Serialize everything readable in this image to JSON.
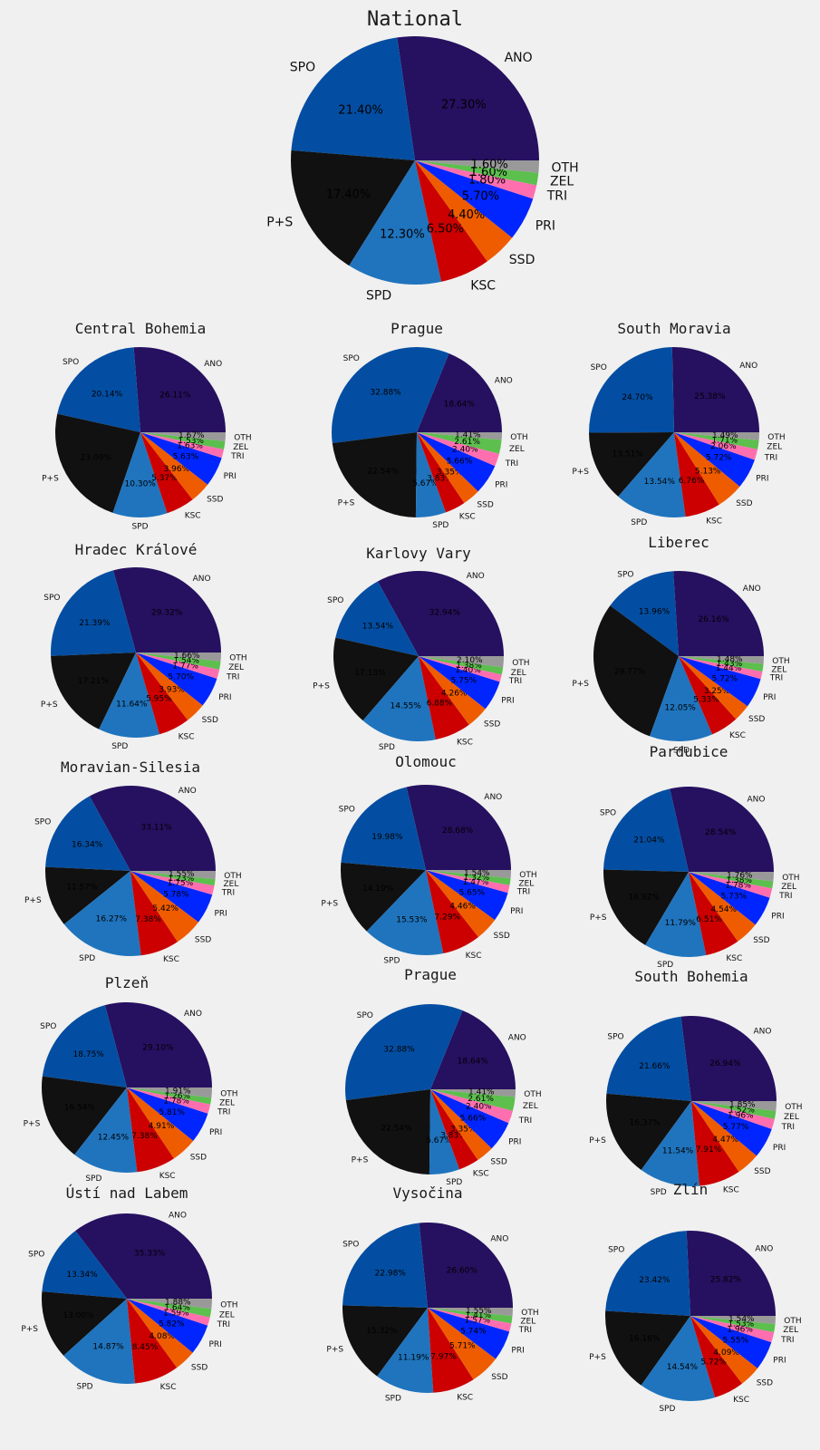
{
  "colors": {
    "ANO": "#261060",
    "SPO": "#034ea2",
    "P+S": "#111111",
    "SPD": "#1f74bd",
    "KSC": "#cc0000",
    "SSD": "#ef5c00",
    "PRI": "#0025ff",
    "TRI": "#ff6fb0",
    "ZEL": "#5cbf4e",
    "OTH": "#999999"
  },
  "chart_data": [
    {
      "type": "pie",
      "title": "National",
      "labels": [
        "ANO",
        "SPO",
        "P+S",
        "SPD",
        "KSC",
        "SSD",
        "PRI",
        "TRI",
        "ZEL",
        "OTH"
      ],
      "values": [
        27.3,
        21.4,
        17.4,
        12.3,
        6.5,
        4.4,
        5.7,
        1.8,
        1.6,
        1.6
      ],
      "pct_labels": [
        "27.30%",
        "21.40%",
        "17.40%",
        "12.30%",
        "6.50%",
        "4.40%",
        "5.70%",
        "1.80%",
        "1.60%",
        "1.60%"
      ]
    },
    {
      "type": "pie",
      "title": "Central Bohemia",
      "labels": [
        "ANO",
        "SPO",
        "P+S",
        "SPD",
        "KSC",
        "SSD",
        "PRI",
        "TRI",
        "ZEL",
        "OTH"
      ],
      "values": [
        26.11,
        20.14,
        23.09,
        10.3,
        5.37,
        3.96,
        5.63,
        1.63,
        1.53,
        1.67
      ],
      "pct_labels": [
        "26.11%",
        "20.14%",
        "23.09%",
        "10.30%",
        "5.37%",
        "3.96%",
        "5.63%",
        "1.63%",
        "1.53%",
        "1.67%"
      ]
    },
    {
      "type": "pie",
      "title": "Prague",
      "labels": [
        "ANO",
        "SPO",
        "P+S",
        "SPD",
        "KSC",
        "SSD",
        "PRI",
        "TRI",
        "ZEL",
        "OTH"
      ],
      "values": [
        18.64,
        32.88,
        22.54,
        5.67,
        3.83,
        3.35,
        5.66,
        2.4,
        2.61,
        1.41
      ],
      "pct_labels": [
        "18.64%",
        "32.88%",
        "22.54%",
        "5.67%",
        "3.83%",
        "3.35%",
        "5.66%",
        "2.40%",
        "2.61%",
        "1.41%"
      ]
    },
    {
      "type": "pie",
      "title": "South Moravia",
      "labels": [
        "ANO",
        "SPO",
        "P+S",
        "SPD",
        "KSC",
        "SSD",
        "PRI",
        "TRI",
        "ZEL",
        "OTH"
      ],
      "values": [
        25.38,
        24.7,
        13.51,
        13.54,
        6.76,
        5.13,
        5.72,
        2.06,
        1.71,
        1.49
      ],
      "pct_labels": [
        "25.38%",
        "24.70%",
        "13.51%",
        "13.54%",
        "6.76%",
        "5.13%",
        "5.72%",
        "2.06%",
        "1.71%",
        "1.49%"
      ]
    },
    {
      "type": "pie",
      "title": "Hradec Králové",
      "labels": [
        "ANO",
        "SPO",
        "P+S",
        "SPD",
        "KSC",
        "SSD",
        "PRI",
        "TRI",
        "ZEL",
        "OTH"
      ],
      "values": [
        29.32,
        21.39,
        17.21,
        11.64,
        5.95,
        3.93,
        5.7,
        1.77,
        1.54,
        1.66
      ],
      "pct_labels": [
        "29.32%",
        "21.39%",
        "17.21%",
        "11.64%",
        "5.95%",
        "3.93%",
        "5.70%",
        "1.77%",
        "1.54%",
        "1.66%"
      ]
    },
    {
      "type": "pie",
      "title": "Karlovy Vary",
      "labels": [
        "ANO",
        "SPO",
        "P+S",
        "SPD",
        "KSC",
        "SSD",
        "PRI",
        "TRI",
        "ZEL",
        "OTH"
      ],
      "values": [
        32.94,
        13.54,
        17.13,
        14.55,
        6.88,
        4.26,
        5.75,
        1.4,
        1.38,
        2.1
      ],
      "pct_labels": [
        "32.94%",
        "13.54%",
        "17.13%",
        "14.55%",
        "6.88%",
        "4.26%",
        "5.75%",
        "1.40%",
        "1.38%",
        "2.10%"
      ]
    },
    {
      "type": "pie",
      "title": "Liberec",
      "labels": [
        "ANO",
        "SPO",
        "P+S",
        "SPD",
        "KSC",
        "SSD",
        "PRI",
        "TRI",
        "ZEL",
        "OTH"
      ],
      "values": [
        26.16,
        13.96,
        29.77,
        12.05,
        5.33,
        3.25,
        5.72,
        1.44,
        1.43,
        1.48
      ],
      "pct_labels": [
        "26.16%",
        "13.96%",
        "29.77%",
        "12.05%",
        "5.33%",
        "3.25%",
        "5.72%",
        "1.44%",
        "1.43%",
        "1.48%"
      ]
    },
    {
      "type": "pie",
      "title": "Moravian-Silesia",
      "labels": [
        "ANO",
        "SPO",
        "P+S",
        "SPD",
        "KSC",
        "SSD",
        "PRI",
        "TRI",
        "ZEL",
        "OTH"
      ],
      "values": [
        33.11,
        16.34,
        11.57,
        16.27,
        7.38,
        5.42,
        5.78,
        1.75,
        1.23,
        1.55
      ],
      "pct_labels": [
        "33.11%",
        "16.34%",
        "11.57%",
        "16.27%",
        "7.38%",
        "5.42%",
        "5.78%",
        "1.75%",
        "1.23%",
        "1.55%"
      ]
    },
    {
      "type": "pie",
      "title": "Olomouc",
      "labels": [
        "ANO",
        "SPO",
        "P+S",
        "SPD",
        "KSC",
        "SSD",
        "PRI",
        "TRI",
        "ZEL",
        "OTH"
      ],
      "values": [
        28.68,
        19.98,
        14.19,
        15.53,
        7.29,
        4.46,
        5.65,
        1.47,
        1.32,
        1.54
      ],
      "pct_labels": [
        "28.68%",
        "19.98%",
        "14.19%",
        "15.53%",
        "7.29%",
        "4.46%",
        "5.65%",
        "1.47%",
        "1.32%",
        "1.54%"
      ]
    },
    {
      "type": "pie",
      "title": "Pardubice",
      "labels": [
        "ANO",
        "SPO",
        "P+S",
        "SPD",
        "KSC",
        "SSD",
        "PRI",
        "TRI",
        "ZEL",
        "OTH"
      ],
      "values": [
        28.54,
        21.04,
        16.92,
        11.79,
        6.51,
        4.54,
        5.73,
        1.78,
        1.38,
        1.76
      ],
      "pct_labels": [
        "28.54%",
        "21.04%",
        "16.92%",
        "11.79%",
        "6.51%",
        "4.54%",
        "5.73%",
        "1.78%",
        "1.38%",
        "1.76%"
      ]
    },
    {
      "type": "pie",
      "title": "Plzeň",
      "labels": [
        "ANO",
        "SPO",
        "P+S",
        "SPD",
        "KSC",
        "SSD",
        "PRI",
        "TRI",
        "ZEL",
        "OTH"
      ],
      "values": [
        29.1,
        18.75,
        16.54,
        12.45,
        7.38,
        4.91,
        5.81,
        1.78,
        1.26,
        1.91
      ],
      "pct_labels": [
        "29.10%",
        "18.75%",
        "16.54%",
        "12.45%",
        "7.38%",
        "4.91%",
        "5.81%",
        "1.78%",
        "1.26%",
        "1.91%"
      ]
    },
    {
      "type": "pie",
      "title": "Prague",
      "labels": [
        "ANO",
        "SPO",
        "P+S",
        "SPD",
        "KSC",
        "SSD",
        "PRI",
        "TRI",
        "ZEL",
        "OTH"
      ],
      "values": [
        18.64,
        32.88,
        22.54,
        5.67,
        3.83,
        3.35,
        5.66,
        2.4,
        2.61,
        1.41
      ],
      "pct_labels": [
        "18.64%",
        "32.88%",
        "22.54%",
        "5.67%",
        "3.83%",
        "3.35%",
        "5.66%",
        "2.40%",
        "2.61%",
        "1.41%"
      ]
    },
    {
      "type": "pie",
      "title": "South Bohemia",
      "labels": [
        "ANO",
        "SPO",
        "P+S",
        "SPD",
        "KSC",
        "SSD",
        "PRI",
        "TRI",
        "ZEL",
        "OTH"
      ],
      "values": [
        26.94,
        21.66,
        16.37,
        11.54,
        7.91,
        4.47,
        5.77,
        1.96,
        1.52,
        1.85
      ],
      "pct_labels": [
        "26.94%",
        "21.66%",
        "16.37%",
        "11.54%",
        "7.91%",
        "4.47%",
        "5.77%",
        "1.96%",
        "1.52%",
        "1.85%"
      ]
    },
    {
      "type": "pie",
      "title": "Ústí nad Labem",
      "labels": [
        "ANO",
        "SPO",
        "P+S",
        "SPD",
        "KSC",
        "SSD",
        "PRI",
        "TRI",
        "ZEL",
        "OTH"
      ],
      "values": [
        35.33,
        13.34,
        13.0,
        14.87,
        8.45,
        4.08,
        5.82,
        1.59,
        1.64,
        1.88
      ],
      "pct_labels": [
        "35.33%",
        "13.34%",
        "13.00%",
        "14.87%",
        "8.45%",
        "4.08%",
        "5.82%",
        "1.59%",
        "1.64%",
        "1.88%"
      ]
    },
    {
      "type": "pie",
      "title": "Vysočina",
      "labels": [
        "ANO",
        "SPO",
        "P+S",
        "SPD",
        "KSC",
        "SSD",
        "PRI",
        "TRI",
        "ZEL",
        "OTH"
      ],
      "values": [
        26.6,
        22.98,
        15.32,
        11.19,
        7.97,
        5.71,
        5.74,
        1.57,
        1.41,
        1.55
      ],
      "pct_labels": [
        "26.60%",
        "22.98%",
        "15.32%",
        "11.19%",
        "7.97%",
        "5.71%",
        "5.74%",
        "1.57%",
        "1.41%",
        "1.55%"
      ]
    },
    {
      "type": "pie",
      "title": "Zlín",
      "labels": [
        "ANO",
        "SPO",
        "P+S",
        "SPD",
        "KSC",
        "SSD",
        "PRI",
        "TRI",
        "ZEL",
        "OTH"
      ],
      "values": [
        25.82,
        23.42,
        16.16,
        14.54,
        5.72,
        4.09,
        5.55,
        1.96,
        1.53,
        1.54
      ],
      "pct_labels": [
        "25.82%",
        "23.42%",
        "16.16%",
        "14.54%",
        "5.72%",
        "4.09%",
        "5.55%",
        "1.96%",
        "1.53%",
        "1.54%"
      ]
    }
  ]
}
